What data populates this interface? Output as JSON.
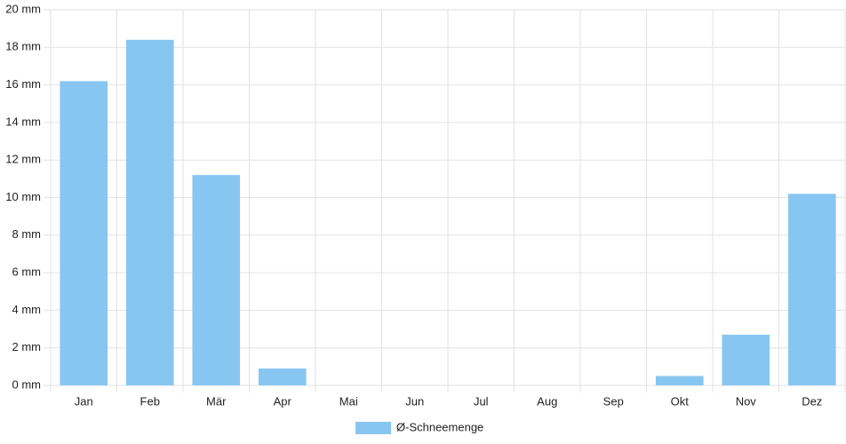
{
  "chart_data": {
    "type": "bar",
    "categories": [
      "Jan",
      "Feb",
      "Mär",
      "Apr",
      "Mai",
      "Jun",
      "Jul",
      "Aug",
      "Sep",
      "Okt",
      "Nov",
      "Dez"
    ],
    "series": [
      {
        "name": "Ø-Schneemenge",
        "color": "#88c6f2",
        "values": [
          16.2,
          18.4,
          11.2,
          0.9,
          0,
          0,
          0,
          0,
          0,
          0.5,
          2.7,
          10.2
        ]
      }
    ],
    "ylim": [
      0,
      20
    ],
    "yticks": [
      {
        "value": 0,
        "label": "0 mm"
      },
      {
        "value": 2,
        "label": "2 mm"
      },
      {
        "value": 4,
        "label": "4 mm"
      },
      {
        "value": 6,
        "label": "6 mm"
      },
      {
        "value": 8,
        "label": "8 mm"
      },
      {
        "value": 10,
        "label": "10 mm"
      },
      {
        "value": 12,
        "label": "12 mm"
      },
      {
        "value": 14,
        "label": "14 mm"
      },
      {
        "value": 16,
        "label": "16 mm"
      },
      {
        "value": 18,
        "label": "18 mm"
      },
      {
        "value": 20,
        "label": "20 mm"
      }
    ],
    "grid": true,
    "legend": "bottom"
  }
}
